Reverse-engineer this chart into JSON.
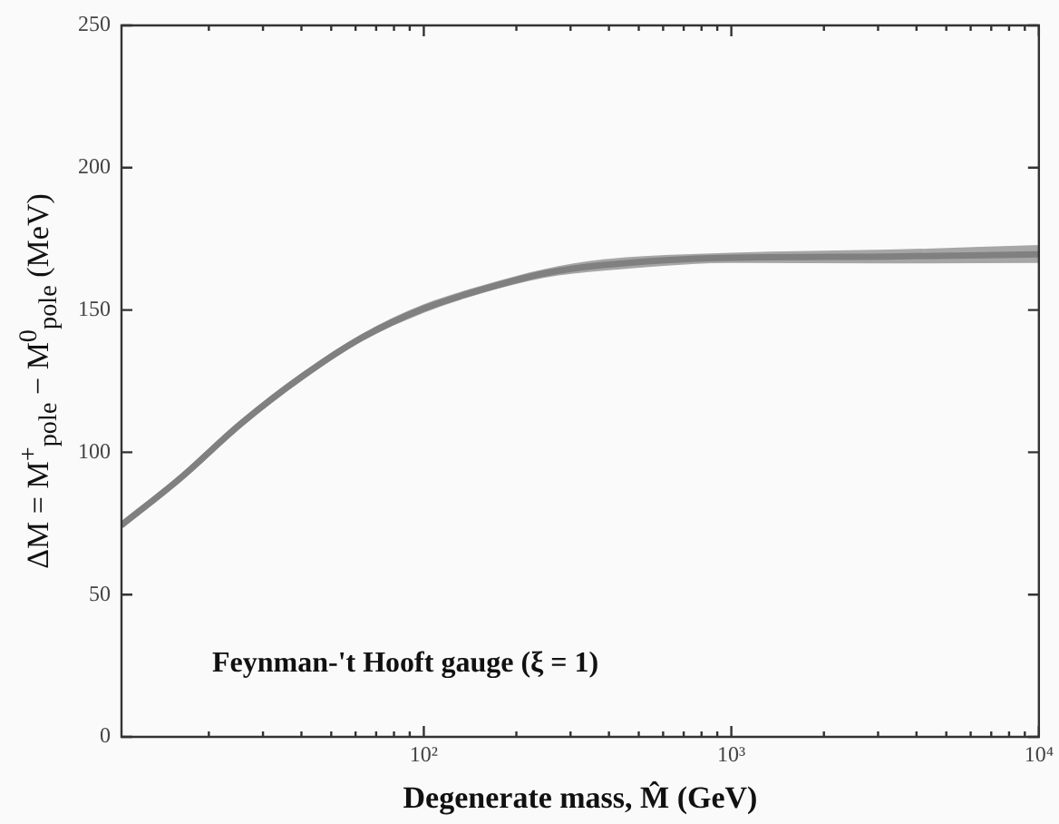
{
  "chart_data": {
    "type": "line",
    "xlabel": "Degenerate mass, M̂ (GeV)",
    "ylabel": "ΔM = M$^{+}$$_{pole}$ − M$^{0}$$_{pole}$ (MeV)",
    "annotations": [
      "Feynman-'t Hooft gauge (ξ = 1)"
    ],
    "log": "x",
    "grid": false,
    "legend": false,
    "xlim": [
      10.4,
      10000
    ],
    "ylim": [
      0,
      250
    ],
    "yticks": [
      0,
      50,
      100,
      150,
      200,
      250
    ],
    "xticks": [
      {
        "value": 20,
        "label": null
      },
      {
        "value": 30,
        "label": null
      },
      {
        "value": 40,
        "label": null
      },
      {
        "value": 50,
        "label": null
      },
      {
        "value": 60,
        "label": null
      },
      {
        "value": 70,
        "label": null
      },
      {
        "value": 80,
        "label": null
      },
      {
        "value": 90,
        "label": null
      },
      {
        "value": 100,
        "label": "10²"
      },
      {
        "value": 200,
        "label": null
      },
      {
        "value": 300,
        "label": null
      },
      {
        "value": 400,
        "label": null
      },
      {
        "value": 500,
        "label": null
      },
      {
        "value": 600,
        "label": null
      },
      {
        "value": 700,
        "label": null
      },
      {
        "value": 800,
        "label": null
      },
      {
        "value": 900,
        "label": null
      },
      {
        "value": 1000,
        "label": "10³"
      },
      {
        "value": 2000,
        "label": null
      },
      {
        "value": 3000,
        "label": null
      },
      {
        "value": 4000,
        "label": null
      },
      {
        "value": 5000,
        "label": null
      },
      {
        "value": 6000,
        "label": null
      },
      {
        "value": 7000,
        "label": null
      },
      {
        "value": 8000,
        "label": null
      },
      {
        "value": 9000,
        "label": null
      },
      {
        "value": 10000,
        "label": "10⁴"
      }
    ],
    "series": [
      {
        "color": "#808080",
        "x": [
          10.4,
          16.2,
          25.4,
          40.3,
          63,
          100,
          156,
          245,
          384,
          1000,
          3240,
          10000
        ],
        "values": [
          74.4,
          91,
          110,
          126.7,
          140.3,
          150.5,
          157.3,
          162.8,
          165.8,
          168.4,
          168.8,
          169.6
        ],
        "lower": [
          73,
          89.6,
          108.6,
          125.3,
          139,
          149,
          156,
          161.3,
          163.8,
          166.5,
          166.4,
          166.5
        ],
        "upper": [
          75.8,
          92.4,
          111.4,
          128.1,
          141.7,
          152,
          158.7,
          164.3,
          167.8,
          170.1,
          171.2,
          172.8
        ]
      }
    ]
  }
}
